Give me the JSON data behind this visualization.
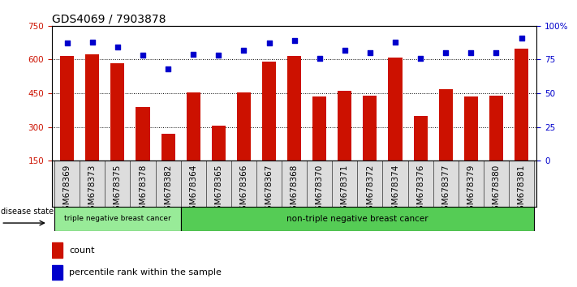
{
  "title": "GDS4069 / 7903878",
  "samples": [
    "GSM678369",
    "GSM678373",
    "GSM678375",
    "GSM678378",
    "GSM678382",
    "GSM678364",
    "GSM678365",
    "GSM678366",
    "GSM678367",
    "GSM678368",
    "GSM678370",
    "GSM678371",
    "GSM678372",
    "GSM678374",
    "GSM678376",
    "GSM678377",
    "GSM678379",
    "GSM678380",
    "GSM678381"
  ],
  "counts": [
    615,
    625,
    585,
    390,
    270,
    455,
    305,
    455,
    590,
    615,
    435,
    460,
    440,
    610,
    350,
    470,
    435,
    440,
    650
  ],
  "percentiles": [
    87,
    88,
    84,
    78,
    68,
    79,
    78,
    82,
    87,
    89,
    76,
    82,
    80,
    88,
    76,
    80,
    80,
    80,
    91
  ],
  "group1_count": 5,
  "group1_label": "triple negative breast cancer",
  "group2_label": "non-triple negative breast cancer",
  "group1_color": "#98EB98",
  "group2_color": "#55CC55",
  "bar_color": "#CC1100",
  "dot_color": "#0000CC",
  "ylim_left": [
    150,
    750
  ],
  "ylim_right": [
    0,
    100
  ],
  "yticks_left": [
    150,
    300,
    450,
    600,
    750
  ],
  "yticks_right": [
    0,
    25,
    50,
    75,
    100
  ],
  "ytick_labels_right": [
    "0",
    "25",
    "50",
    "75",
    "100%"
  ],
  "ylabel_left_color": "#CC1100",
  "ylabel_right_color": "#0000CC",
  "legend_count_label": "count",
  "legend_pct_label": "percentile rank within the sample",
  "background_color": "#ffffff",
  "plot_bg_color": "#ffffff",
  "disease_state_label": "disease state",
  "title_fontsize": 10,
  "tick_fontsize": 7.5,
  "bar_width": 0.55
}
